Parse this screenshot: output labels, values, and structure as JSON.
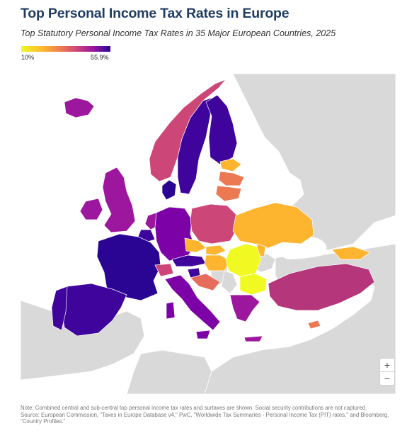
{
  "header": {
    "title": "Top Personal Income Tax Rates in Europe",
    "subtitle": "Top Statutory Personal Income Tax Rates in 35 Major European Countries, 2025"
  },
  "legend": {
    "min_label": "10%",
    "max_label": "55.9%",
    "min_value": 10,
    "max_value": 55.9,
    "colors": [
      "#f0f921",
      "#fdb42f",
      "#ed7953",
      "#cc4778",
      "#9c179e",
      "#2a0593"
    ]
  },
  "map": {
    "land_color": "#d9d9d9",
    "sea_color": "#ffffff",
    "highest_rates_color": "#2a0593",
    "lowest_rates_color": "#f0f921"
  },
  "zoom": {
    "in_label": "+",
    "out_label": "−"
  },
  "footer": {
    "note": "Note: Combined central and sub-central top personal income tax rates and surtaxes are shown. Social security contributions are not captured.",
    "source": "Source: European Commission, \"Taxes in Europe Database v4,\" PwC, \"Worldwide Tax Summaries - Personal Income Tax (PIT) rates,\" and Bloomberg, \"Country Profiles.\""
  }
}
